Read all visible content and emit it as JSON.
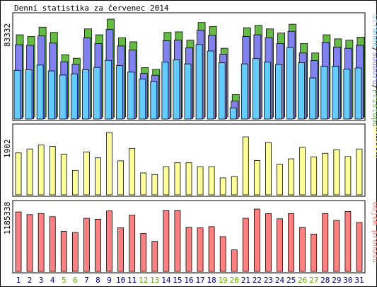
{
  "chart_data": {
    "type": "bar",
    "title": "Denní statistika za červenec 2014",
    "days": [
      "1",
      "2",
      "3",
      "4",
      "5",
      "6",
      "7",
      "8",
      "9",
      "10",
      "11",
      "12",
      "13",
      "14",
      "15",
      "16",
      "17",
      "18",
      "19",
      "20",
      "21",
      "22",
      "23",
      "24",
      "25",
      "26",
      "27",
      "28",
      "29",
      "30",
      "31"
    ],
    "weekend_days": [
      "5",
      "6",
      "12",
      "13",
      "19",
      "20",
      "26",
      "27"
    ],
    "colors": {
      "hits": "#66bb44",
      "files": "#8080ee",
      "pages": "#66ccff",
      "visits": "#ffff99",
      "volume": "#ff8080",
      "weekend_label": "#66aa00",
      "weekday_label": "#000080"
    },
    "panels": [
      {
        "id": "traffic",
        "max_label": "83332",
        "max": 83332,
        "legend": [
          {
            "text": "Stránek",
            "color": "#66ccff"
          },
          {
            "text": "/",
            "color": "#000000"
          },
          {
            "text": "Souborů",
            "color": "#8080ee"
          },
          {
            "text": "/",
            "color": "#000000"
          },
          {
            "text": "Přístupů",
            "color": "#66bb44"
          }
        ],
        "series": [
          {
            "name": "Přístupů",
            "values": [
              70000,
              68500,
              76500,
              72000,
              53000,
              50000,
              75000,
              70000,
              83332,
              67500,
              64000,
              42000,
              40500,
              72000,
              72500,
              65500,
              80500,
              77000,
              58500,
              19000,
              76000,
              78000,
              75000,
              71500,
              79000,
              62500,
              54500,
              70000,
              66500,
              65500,
              68000
            ]
          },
          {
            "name": "Souborů",
            "values": [
              63000,
              62500,
              70500,
              64500,
              48500,
              46500,
              69000,
              64000,
              76000,
              62000,
              58500,
              38500,
              37000,
              66500,
              67000,
              60500,
              75500,
              71000,
              55000,
              15000,
              70000,
              71500,
              69000,
              64000,
              74500,
              56000,
              49500,
              65000,
              61000,
              60000,
              62500
            ]
          },
          {
            "name": "Stránek",
            "values": [
              41500,
              42000,
              46000,
              41000,
              37500,
              38500,
              42000,
              44000,
              50000,
              45500,
              40000,
              34000,
              32000,
              48500,
              50500,
              47000,
              63500,
              58000,
              48000,
              9500,
              47000,
              51500,
              48500,
              46500,
              61000,
              48000,
              35000,
              45000,
              45000,
              42500,
              43500
            ]
          }
        ]
      },
      {
        "id": "visits",
        "max_label": "1902",
        "max": 1902,
        "legend": [
          {
            "text": "Návštěv",
            "color": "#ffff99"
          }
        ],
        "series": [
          {
            "name": "Návštěv",
            "values": [
              1280,
              1400,
              1520,
              1480,
              1240,
              750,
              1310,
              1130,
              1902,
              1040,
              1420,
              670,
              620,
              860,
              980,
              980,
              860,
              860,
              520,
              560,
              1770,
              1050,
              1600,
              930,
              1100,
              1450,
              1160,
              1270,
              1380,
              1170,
              1400
            ]
          }
        ]
      },
      {
        "id": "volume",
        "max_label": "1185338",
        "max": 1185338,
        "legend": [
          {
            "text": "Objem přenosu",
            "color": "#ff8080"
          }
        ],
        "series": [
          {
            "name": "Objem přenosu",
            "values": [
              1130000,
              1080000,
              1100000,
              1040000,
              760000,
              740000,
              1010000,
              990000,
              1150000,
              830000,
              1070000,
              720000,
              570000,
              1160000,
              1160000,
              840000,
              830000,
              850000,
              660000,
              410000,
              1010000,
              1185338,
              1100000,
              1000000,
              1100000,
              840000,
              710000,
              1100000,
              970000,
              1140000,
              930000
            ]
          }
        ]
      }
    ]
  }
}
